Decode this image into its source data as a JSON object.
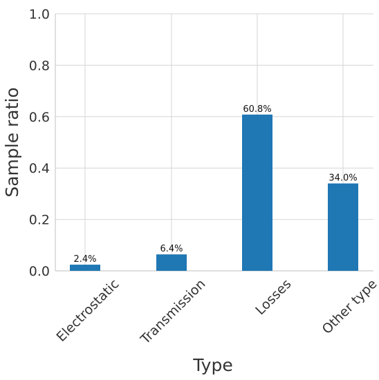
{
  "chart_data": {
    "type": "bar",
    "categories": [
      "Electrostatic",
      "Transmission",
      "Losses",
      "Other type"
    ],
    "values": [
      0.024,
      0.064,
      0.608,
      0.34
    ],
    "data_labels": [
      "2.4%",
      "6.4%",
      "60.8%",
      "34.0%"
    ],
    "title": "",
    "xlabel": "Type",
    "ylabel": "Sample ratio",
    "ylim": [
      0,
      1.0
    ],
    "yticks": [
      "0.0",
      "0.2",
      "0.4",
      "0.6",
      "0.8",
      "1.0"
    ],
    "ytick_values": [
      0,
      0.2,
      0.4,
      0.6,
      0.8,
      1.0
    ],
    "grid": true,
    "bar_color": "#1f77b4"
  }
}
